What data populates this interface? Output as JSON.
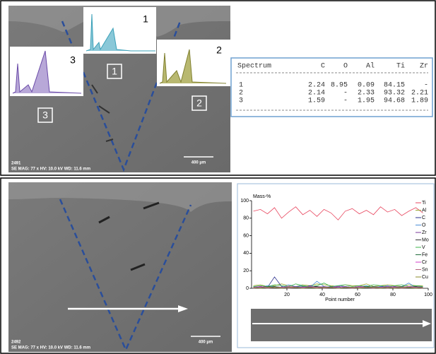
{
  "top_panel": {
    "image": {
      "sample_id": "2491",
      "info": "SE MAG: 77 x HV: 10.0 kV WD: 11.6 mm",
      "scale_bar": "400 µm",
      "inset_labels": [
        "1",
        "2",
        "3"
      ],
      "area_labels": [
        "1",
        "2",
        "3"
      ]
    },
    "table": {
      "columns": [
        "Spectrum",
        "C",
        "O",
        "Al",
        "Ti",
        "Zr"
      ],
      "rows": [
        [
          "1",
          "2.24",
          "8.95",
          "0.09",
          "84.15",
          "-"
        ],
        [
          "2",
          "2.14",
          "-",
          "2.33",
          "93.32",
          "2.21"
        ],
        [
          "3",
          "1.59",
          "-",
          "1.95",
          "94.68",
          "1.89"
        ]
      ]
    }
  },
  "bottom_panel": {
    "image": {
      "sample_id": "2492",
      "info": "SE MAG: 77 x HV: 10.0 kV WD: 11.6 mm",
      "scale_bar": "400 µm"
    },
    "chart_data": {
      "type": "line",
      "y_label": "Mass-%",
      "x_label": "Point number",
      "x": [
        1,
        5,
        9,
        13,
        17,
        21,
        25,
        29,
        33,
        37,
        41,
        45,
        49,
        53,
        57,
        61,
        65,
        69,
        73,
        77,
        81,
        85,
        89,
        93,
        97
      ],
      "xlim": [
        0,
        100
      ],
      "ylim": [
        0,
        100
      ],
      "xticks": [
        20,
        40,
        60,
        80,
        100
      ],
      "yticks": [
        0,
        20,
        40,
        60,
        80,
        100
      ],
      "series": [
        {
          "name": "Ti",
          "color": "#e8475f",
          "values": [
            88,
            90,
            85,
            92,
            80,
            87,
            93,
            84,
            89,
            82,
            90,
            86,
            78,
            88,
            91,
            85,
            89,
            84,
            93,
            87,
            90,
            83,
            88,
            92,
            86
          ]
        },
        {
          "name": "Al",
          "color": "#9aa832",
          "values": [
            3,
            4,
            2,
            3,
            5,
            3,
            2,
            4,
            3,
            5,
            4,
            3,
            2,
            4,
            3,
            3,
            5,
            2,
            3,
            4,
            3,
            2,
            4,
            3,
            3
          ]
        },
        {
          "name": "C",
          "color": "#2a2f8c",
          "values": [
            1,
            2,
            1,
            13,
            2,
            1,
            2,
            1,
            3,
            2,
            1,
            2,
            1,
            2,
            1,
            2,
            1,
            1,
            2,
            1,
            2,
            1,
            1,
            2,
            1
          ]
        },
        {
          "name": "O",
          "color": "#4a8fd8",
          "values": [
            2,
            1,
            3,
            2,
            1,
            4,
            2,
            3,
            1,
            8,
            2,
            1,
            3,
            2,
            1,
            2,
            3,
            1,
            2,
            3,
            1,
            2,
            6,
            1,
            2
          ]
        },
        {
          "name": "Zr",
          "color": "#7a3a9a",
          "values": [
            1,
            2,
            1,
            2,
            1,
            1,
            2,
            1,
            2,
            1,
            2,
            1,
            1,
            2,
            1,
            2,
            1,
            2,
            1,
            1,
            2,
            1,
            2,
            1,
            1
          ]
        },
        {
          "name": "Mo",
          "color": "#333333",
          "values": [
            1,
            1,
            2,
            1,
            1,
            2,
            1,
            1,
            1,
            2,
            1,
            1,
            2,
            1,
            1,
            1,
            2,
            1,
            1,
            2,
            1,
            1,
            1,
            2,
            1
          ]
        },
        {
          "name": "V",
          "color": "#3cb44b",
          "values": [
            2,
            3,
            2,
            4,
            3,
            2,
            5,
            3,
            2,
            3,
            6,
            2,
            3,
            4,
            2,
            3,
            2,
            4,
            3,
            2,
            3,
            4,
            2,
            3,
            2
          ]
        },
        {
          "name": "Fe",
          "color": "#1f6b3a",
          "values": [
            1,
            1,
            1,
            2,
            1,
            1,
            1,
            2,
            1,
            1,
            1,
            1,
            2,
            1,
            1,
            1,
            1,
            2,
            1,
            1,
            1,
            2,
            1,
            1,
            1
          ]
        },
        {
          "name": "Cr",
          "color": "#d03cc8",
          "values": [
            1,
            2,
            1,
            1,
            1,
            2,
            1,
            1,
            2,
            1,
            1,
            1,
            2,
            1,
            1,
            2,
            1,
            1,
            1,
            2,
            1,
            1,
            2,
            1,
            1
          ]
        },
        {
          "name": "Sn",
          "color": "#b0607a",
          "values": [
            0,
            1,
            0,
            1,
            1,
            0,
            1,
            0,
            1,
            1,
            0,
            1,
            0,
            1,
            0,
            1,
            1,
            0,
            1,
            0,
            1,
            0,
            1,
            1,
            0
          ]
        },
        {
          "name": "Cu",
          "color": "#8a8a2a",
          "values": [
            1,
            0,
            1,
            1,
            0,
            1,
            1,
            0,
            1,
            0,
            1,
            1,
            0,
            1,
            1,
            0,
            1,
            1,
            0,
            1,
            0,
            1,
            1,
            0,
            1
          ]
        }
      ]
    }
  }
}
